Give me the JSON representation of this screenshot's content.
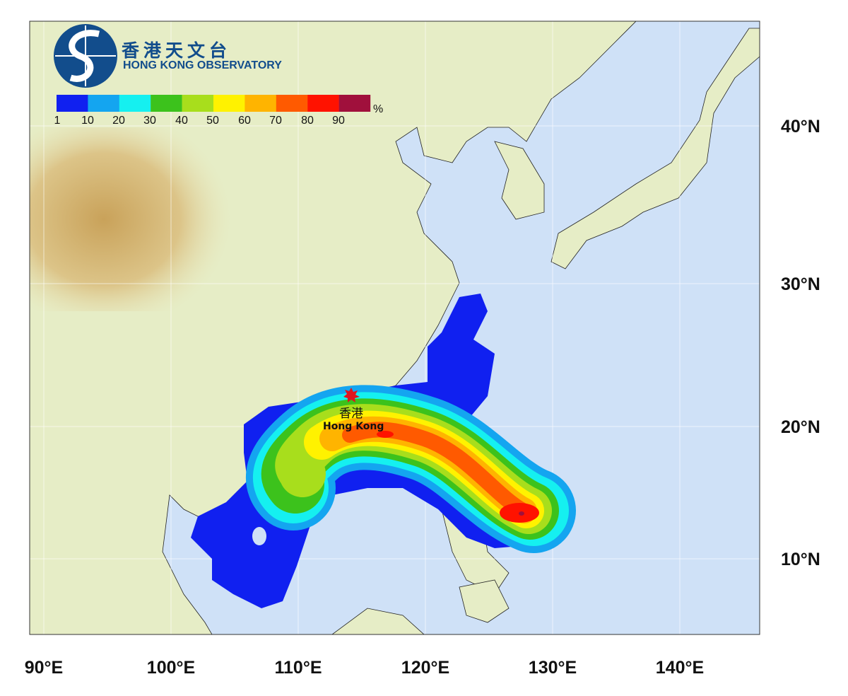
{
  "logo": {
    "chinese": "香港天文台",
    "english": "HONG KONG OBSERVATORY",
    "brand_color": "#124d8c"
  },
  "legend": {
    "unit": "%",
    "labels": [
      "1",
      "10",
      "20",
      "30",
      "40",
      "50",
      "60",
      "70",
      "80",
      "90"
    ],
    "colors": [
      "#1020f0",
      "#14a5f0",
      "#15f0f0",
      "#3cc21c",
      "#a8de1c",
      "#fff200",
      "#ffb400",
      "#ff5a00",
      "#ff1200",
      "#a0103c"
    ]
  },
  "map": {
    "latitude_labels": [
      "40°N",
      "30°N",
      "20°N",
      "10°N"
    ],
    "longitude_labels": [
      "90°E",
      "100°E",
      "110°E",
      "120°E",
      "130°E",
      "140°E"
    ],
    "marker": {
      "label_cn": "香港",
      "label_en": "Hong Kong",
      "icon": "star-burst-icon",
      "color": "#e0141e"
    },
    "ocean_color": "#cfe1f7",
    "land_color": "#e8efc8"
  }
}
